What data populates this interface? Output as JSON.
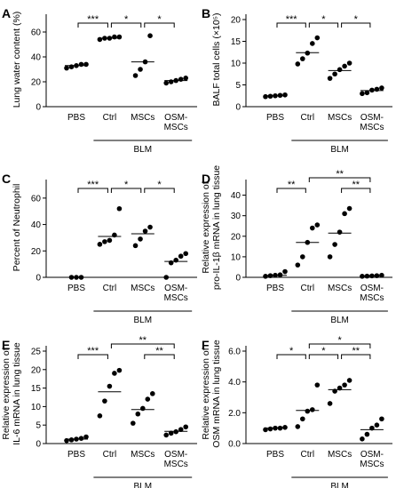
{
  "chart_data": [
    {
      "panel": "A",
      "type": "scatter",
      "ylabel": "Lung water content (%)",
      "ylim": [
        0,
        70
      ],
      "yticks": [
        0,
        20,
        40,
        60
      ],
      "categories": [
        "PBS",
        "Ctrl",
        "MSCs",
        "OSM-\nMSCs"
      ],
      "group_label": "BLM",
      "points": [
        [
          31,
          32,
          33,
          34,
          34
        ],
        [
          54,
          55,
          55,
          56,
          56
        ],
        [
          25,
          30,
          36,
          57
        ],
        [
          19,
          20,
          21,
          22,
          23
        ]
      ],
      "means": [
        33,
        55,
        36,
        21
      ],
      "comparisons": [
        {
          "from": 0,
          "to": 1,
          "label": "***",
          "level": 0
        },
        {
          "from": 1,
          "to": 2,
          "label": "*",
          "level": 0
        },
        {
          "from": 2,
          "to": 3,
          "label": "*",
          "level": 0
        }
      ]
    },
    {
      "panel": "B",
      "type": "scatter",
      "ylabel": "BALF total cells (×10⁵)",
      "ylim": [
        0,
        20
      ],
      "yticks": [
        0,
        5,
        10,
        15,
        20
      ],
      "categories": [
        "PBS",
        "Ctrl",
        "MSCs",
        "OSM-\nMSCs"
      ],
      "group_label": "BLM",
      "points": [
        [
          2.3,
          2.4,
          2.5,
          2.6,
          2.7
        ],
        [
          9.8,
          11.0,
          12.3,
          14.5,
          15.8
        ],
        [
          6.5,
          7.5,
          8.5,
          9.3,
          10.0
        ],
        [
          3.0,
          3.2,
          3.8,
          4.0,
          4.3
        ]
      ],
      "means": [
        2.5,
        12.4,
        8.3,
        3.7
      ],
      "comparisons": [
        {
          "from": 0,
          "to": 1,
          "label": "***",
          "level": 0
        },
        {
          "from": 1,
          "to": 2,
          "label": "*",
          "level": 0
        },
        {
          "from": 2,
          "to": 3,
          "label": "*",
          "level": 0
        }
      ]
    },
    {
      "panel": "C",
      "type": "scatter",
      "ylabel": "Percent of Neutrophil",
      "ylim": [
        0,
        70
      ],
      "yticks": [
        0,
        20,
        40,
        60
      ],
      "categories": [
        "PBS",
        "Ctrl",
        "MSCs",
        "OSM-\nMSCs"
      ],
      "group_label": "BLM",
      "points": [
        [
          0,
          0,
          0
        ],
        [
          25,
          27,
          28,
          32,
          52
        ],
        [
          24,
          29,
          35,
          38
        ],
        [
          0,
          11,
          13,
          16,
          18
        ]
      ],
      "means": [
        0,
        31,
        33,
        12
      ],
      "comparisons": [
        {
          "from": 0,
          "to": 1,
          "label": "***",
          "level": 0
        },
        {
          "from": 1,
          "to": 2,
          "label": "*",
          "level": 0
        },
        {
          "from": 2,
          "to": 3,
          "label": "*",
          "level": 0
        }
      ]
    },
    {
      "panel": "D",
      "type": "scatter",
      "ylabel": "Relative expression of\npro-IL-1β mRNA in lung tissue",
      "ylim": [
        0,
        45
      ],
      "yticks": [
        0,
        10,
        20,
        30,
        40
      ],
      "categories": [
        "PBS",
        "Ctrl",
        "MSCs",
        "OSM-\nMSCs"
      ],
      "group_label": "BLM",
      "points": [
        [
          0.5,
          0.8,
          1.0,
          1.2,
          2.8
        ],
        [
          6,
          10,
          17,
          24,
          25.5
        ],
        [
          10,
          16,
          22,
          31,
          33.5
        ],
        [
          0.5,
          0.6,
          0.7,
          0.8,
          1.0
        ]
      ],
      "means": [
        1,
        17,
        21.5,
        0.8
      ],
      "comparisons": [
        {
          "from": 0,
          "to": 1,
          "label": "**",
          "level": 0
        },
        {
          "from": 1,
          "to": 3,
          "label": "**",
          "level": 1
        },
        {
          "from": 2,
          "to": 3,
          "label": "**",
          "level": 0
        }
      ]
    },
    {
      "panel": "E",
      "type": "scatter",
      "ylabel": "Relative expression of\nIL-6 mRNA in lung tissue",
      "ylim": [
        0,
        25
      ],
      "yticks": [
        0,
        5,
        10,
        15,
        20,
        25
      ],
      "categories": [
        "PBS",
        "Ctrl",
        "MSCs",
        "OSM-\nMSCs"
      ],
      "group_label": "BLM",
      "points": [
        [
          0.8,
          1.0,
          1.2,
          1.4,
          1.8
        ],
        [
          7.5,
          11.5,
          15.5,
          19,
          19.8
        ],
        [
          5.5,
          8,
          9.5,
          12,
          13.5
        ],
        [
          2.3,
          2.8,
          3.2,
          3.8,
          4.5
        ]
      ],
      "means": [
        1.2,
        14,
        9.2,
        3.3
      ],
      "comparisons": [
        {
          "from": 0,
          "to": 1,
          "label": "***",
          "level": 0
        },
        {
          "from": 1,
          "to": 3,
          "label": "**",
          "level": 1
        },
        {
          "from": 2,
          "to": 3,
          "label": "**",
          "level": 0
        }
      ]
    },
    {
      "panel": "F",
      "type": "scatter",
      "ylabel": "Relative expression of\nOSM mRNA in lung tissue",
      "ylim": [
        0,
        6.0
      ],
      "yticks": [
        0,
        2.0,
        4.0,
        6.0
      ],
      "ytick_format": "1dp",
      "categories": [
        "PBS",
        "Ctrl",
        "MSCs",
        "OSM-\nMSCs"
      ],
      "group_label": "BLM",
      "points": [
        [
          0.9,
          0.95,
          1.0,
          1.0,
          1.05
        ],
        [
          1.1,
          1.6,
          2.1,
          2.2,
          3.8
        ],
        [
          2.6,
          3.4,
          3.6,
          3.8,
          4.1
        ],
        [
          0.3,
          0.6,
          1.0,
          1.2,
          1.6
        ]
      ],
      "means": [
        1.0,
        2.15,
        3.5,
        0.9
      ],
      "comparisons": [
        {
          "from": 0,
          "to": 1,
          "label": "*",
          "level": 0
        },
        {
          "from": 1,
          "to": 3,
          "label": "*",
          "level": 1
        },
        {
          "from": 1,
          "to": 2,
          "label": "*",
          "level": 0
        },
        {
          "from": 2,
          "to": 3,
          "label": "**",
          "level": 0
        }
      ]
    }
  ]
}
